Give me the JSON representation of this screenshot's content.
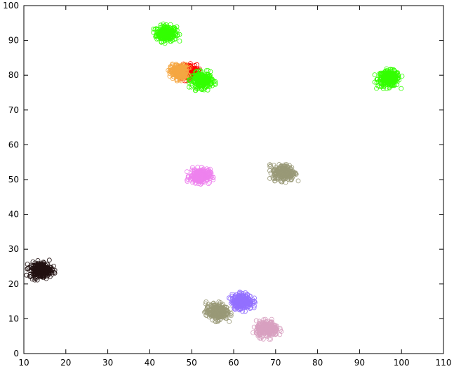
{
  "chart_data": {
    "type": "scatter",
    "title": "",
    "xlabel": "",
    "ylabel": "",
    "xlim": [
      10,
      110
    ],
    "ylim": [
      0,
      100
    ],
    "xticks": [
      10,
      20,
      30,
      40,
      50,
      60,
      70,
      80,
      90,
      100,
      110
    ],
    "yticks": [
      0,
      10,
      20,
      30,
      40,
      50,
      60,
      70,
      80,
      90,
      100
    ],
    "grid": false,
    "legend": "none",
    "marker": "open-circle",
    "clusters": [
      {
        "center": [
          44,
          92
        ],
        "spread": [
          1.2,
          1.1
        ],
        "color": "#33ff00"
      },
      {
        "center": [
          97,
          79
        ],
        "spread": [
          1.3,
          1.1
        ],
        "color": "#33ff00"
      },
      {
        "center": [
          49,
          81
        ],
        "spread": [
          1.1,
          1.0
        ],
        "color": "#ff0000"
      },
      {
        "center": [
          47,
          81
        ],
        "spread": [
          1.0,
          1.0
        ],
        "color": "#f5a742"
      },
      {
        "center": [
          52.5,
          78.5
        ],
        "spread": [
          1.2,
          1.1
        ],
        "color": "#33ff00"
      },
      {
        "center": [
          52,
          51
        ],
        "spread": [
          1.2,
          1.0
        ],
        "color": "#ee82ee"
      },
      {
        "center": [
          72,
          52
        ],
        "spread": [
          1.3,
          1.1
        ],
        "color": "#999977"
      },
      {
        "center": [
          14,
          24
        ],
        "spread": [
          1.3,
          1.1
        ],
        "color": "#221111"
      },
      {
        "center": [
          56,
          12
        ],
        "spread": [
          1.3,
          1.1
        ],
        "color": "#999977"
      },
      {
        "center": [
          62,
          15
        ],
        "spread": [
          1.2,
          1.1
        ],
        "color": "#9370ff"
      },
      {
        "center": [
          68,
          7
        ],
        "spread": [
          1.3,
          1.1
        ],
        "color": "#d8a0c0"
      }
    ]
  }
}
